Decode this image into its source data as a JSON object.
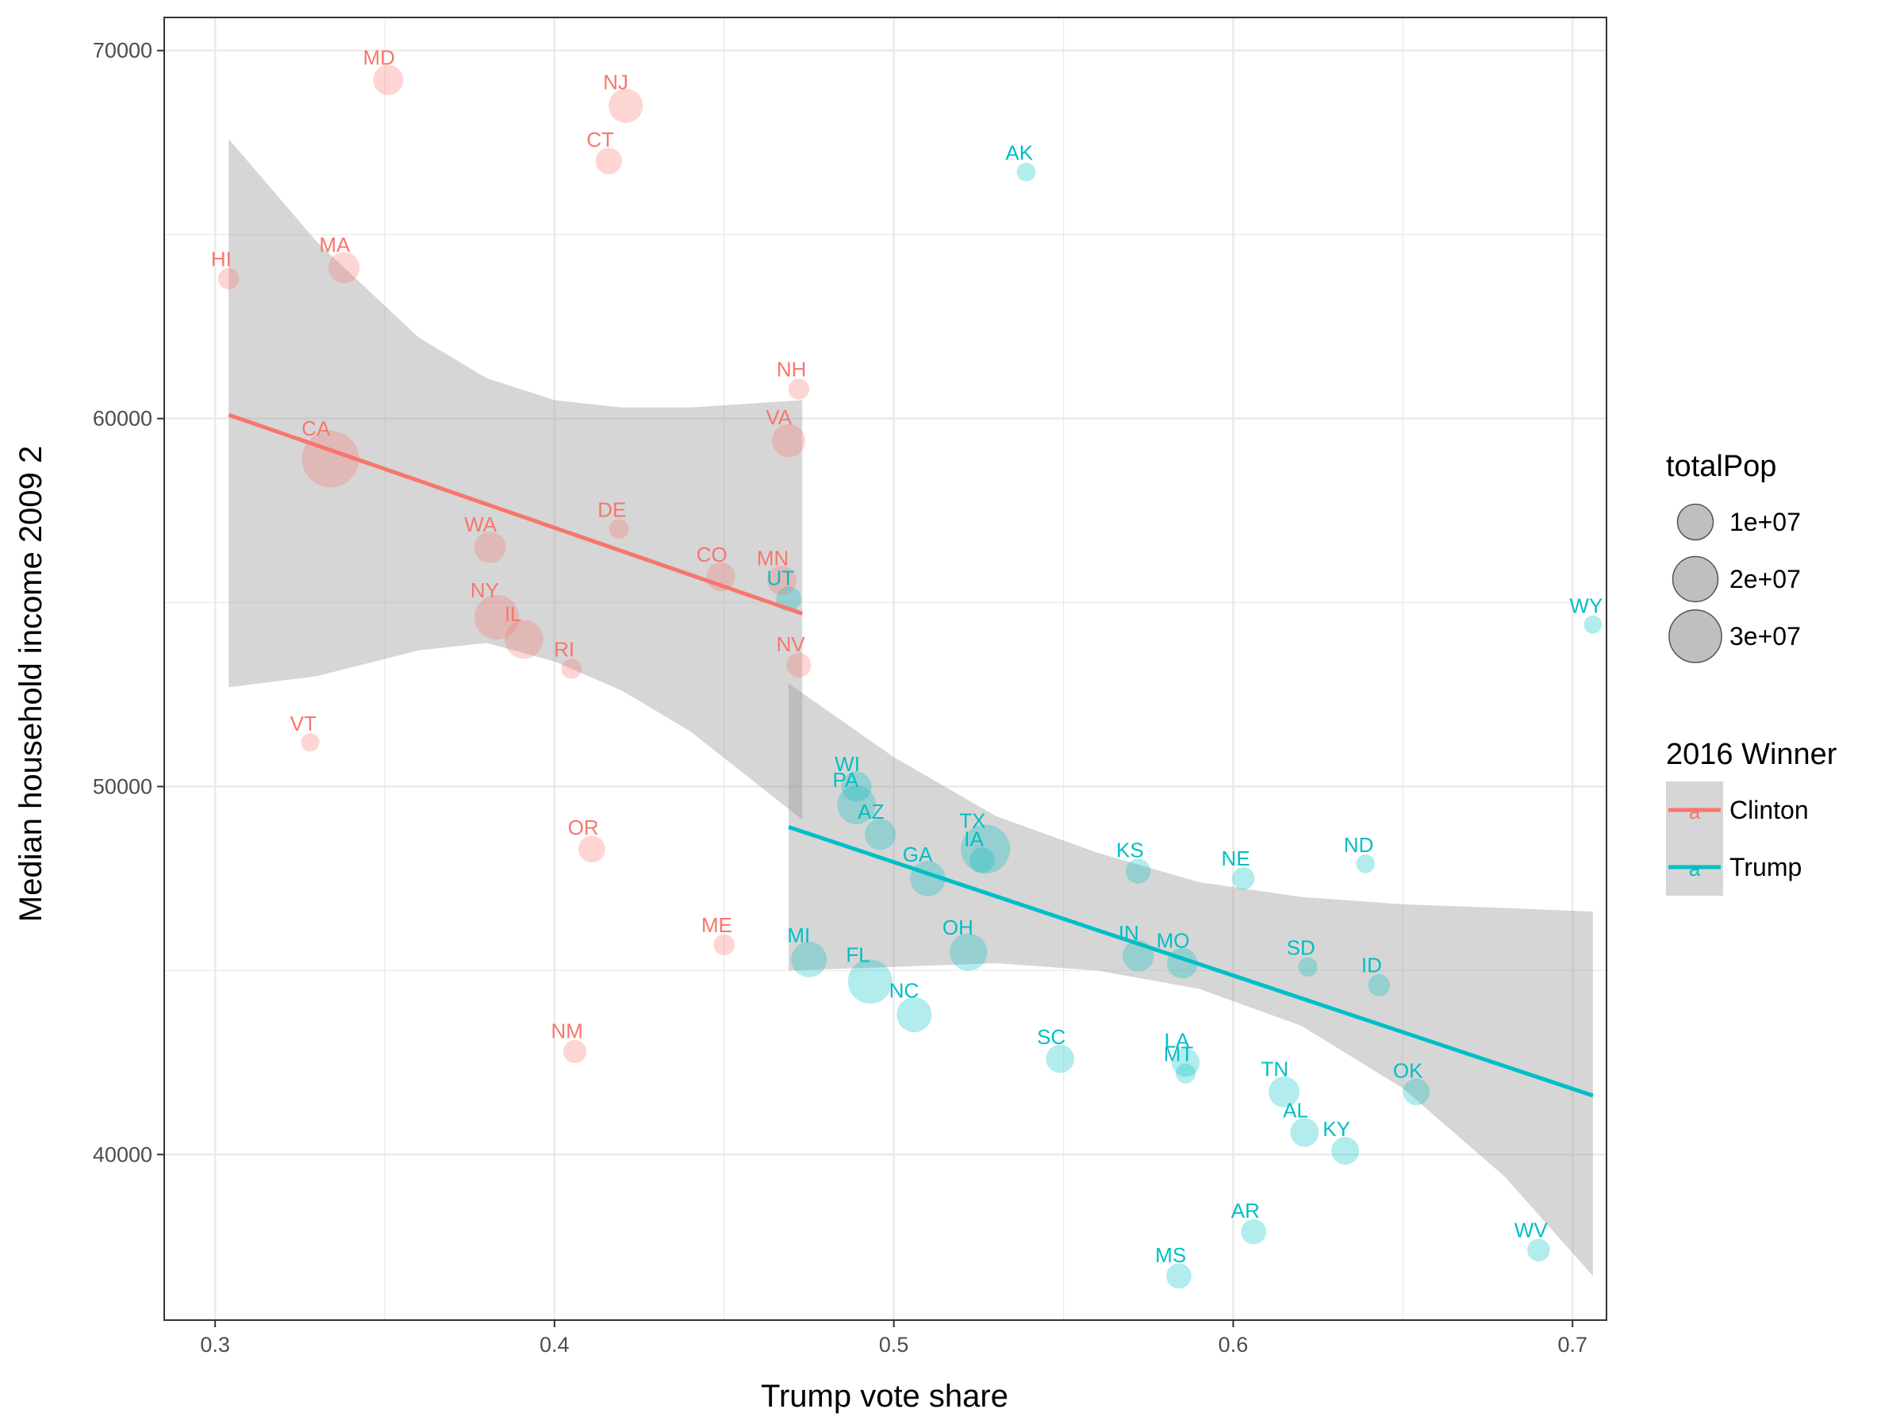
{
  "chart_data": {
    "type": "scatter",
    "title": "",
    "xlabel": "Trump  vote share",
    "ylabel": "Median household income 2009  2",
    "xlim": [
      0.285,
      0.71
    ],
    "ylim": [
      35500,
      70900
    ],
    "x_ticks": [
      0.3,
      0.4,
      0.5,
      0.6,
      0.7
    ],
    "x_tick_labels": [
      "0.3",
      "0.4",
      "0.5",
      "0.6",
      "0.7"
    ],
    "y_ticks": [
      40000,
      50000,
      60000,
      70000
    ],
    "y_tick_labels": [
      "40000",
      "50000",
      "60000",
      "70000"
    ],
    "grid": true,
    "colors": {
      "Clinton": "#F8766D",
      "Trump": "#00BFC4",
      "ribbon": "#999999",
      "panel_border": "#333333",
      "grid": "#ebebeb"
    },
    "size_legend": {
      "title": "totalPop",
      "entries": [
        {
          "label": "1e+07",
          "value": 10000000
        },
        {
          "label": "2e+07",
          "value": 20000000
        },
        {
          "label": "3e+07",
          "value": 30000000
        }
      ]
    },
    "color_legend": {
      "title": "2016 Winner",
      "entries": [
        {
          "label": "Clinton",
          "key_glyph": "a"
        },
        {
          "label": "Trump",
          "key_glyph": "a"
        }
      ]
    },
    "series": [
      {
        "name": "Clinton",
        "points": [
          {
            "label": "MD",
            "x": 0.351,
            "y": 69200,
            "pop": 5800000
          },
          {
            "label": "NJ",
            "x": 0.421,
            "y": 68500,
            "pop": 8800000
          },
          {
            "label": "CT",
            "x": 0.416,
            "y": 67000,
            "pop": 3600000
          },
          {
            "label": "HI",
            "x": 0.304,
            "y": 63800,
            "pop": 1400000
          },
          {
            "label": "MA",
            "x": 0.338,
            "y": 64100,
            "pop": 6500000
          },
          {
            "label": "NH",
            "x": 0.472,
            "y": 60800,
            "pop": 1300000
          },
          {
            "label": "CA",
            "x": 0.334,
            "y": 58900,
            "pop": 37000000
          },
          {
            "label": "VA",
            "x": 0.469,
            "y": 59400,
            "pop": 8000000
          },
          {
            "label": "DE",
            "x": 0.419,
            "y": 57000,
            "pop": 900000
          },
          {
            "label": "WA",
            "x": 0.381,
            "y": 56500,
            "pop": 6700000
          },
          {
            "label": "MN",
            "x": 0.467,
            "y": 55600,
            "pop": 5300000
          },
          {
            "label": "CO",
            "x": 0.449,
            "y": 55700,
            "pop": 5000000
          },
          {
            "label": "NY",
            "x": 0.383,
            "y": 54600,
            "pop": 19400000
          },
          {
            "label": "IL",
            "x": 0.391,
            "y": 54000,
            "pop": 12800000
          },
          {
            "label": "RI",
            "x": 0.405,
            "y": 53200,
            "pop": 1050000
          },
          {
            "label": "NV",
            "x": 0.472,
            "y": 53300,
            "pop": 2700000
          },
          {
            "label": "VT",
            "x": 0.328,
            "y": 51200,
            "pop": 620000
          },
          {
            "label": "OR",
            "x": 0.411,
            "y": 48300,
            "pop": 3800000
          },
          {
            "label": "ME",
            "x": 0.45,
            "y": 45700,
            "pop": 1330000
          },
          {
            "label": "NM",
            "x": 0.406,
            "y": 42800,
            "pop": 2060000
          }
        ],
        "fit": {
          "x": [
            0.304,
            0.473
          ],
          "y": [
            60100,
            54700
          ]
        }
      },
      {
        "name": "Trump",
        "points": [
          {
            "label": "AK",
            "x": 0.539,
            "y": 66700,
            "pop": 710000
          },
          {
            "label": "WY",
            "x": 0.706,
            "y": 54400,
            "pop": 560000
          },
          {
            "label": "UT",
            "x": 0.469,
            "y": 55100,
            "pop": 2800000
          },
          {
            "label": "WI",
            "x": 0.489,
            "y": 50000,
            "pop": 5700000
          },
          {
            "label": "PA",
            "x": 0.489,
            "y": 49500,
            "pop": 12700000
          },
          {
            "label": "TX",
            "x": 0.527,
            "y": 48300,
            "pop": 25000000
          },
          {
            "label": "IA",
            "x": 0.526,
            "y": 48000,
            "pop": 3000000
          },
          {
            "label": "AZ",
            "x": 0.496,
            "y": 48700,
            "pop": 6400000
          },
          {
            "label": "GA",
            "x": 0.51,
            "y": 47500,
            "pop": 9700000
          },
          {
            "label": "KS",
            "x": 0.572,
            "y": 47700,
            "pop": 2850000
          },
          {
            "label": "NE",
            "x": 0.603,
            "y": 47500,
            "pop": 1830000
          },
          {
            "label": "ND",
            "x": 0.639,
            "y": 47900,
            "pop": 670000
          },
          {
            "label": "MI",
            "x": 0.475,
            "y": 45300,
            "pop": 9900000
          },
          {
            "label": "FL",
            "x": 0.493,
            "y": 44700,
            "pop": 18800000
          },
          {
            "label": "OH",
            "x": 0.522,
            "y": 45500,
            "pop": 11500000
          },
          {
            "label": "IN",
            "x": 0.572,
            "y": 45400,
            "pop": 6500000
          },
          {
            "label": "MO",
            "x": 0.585,
            "y": 45200,
            "pop": 6000000
          },
          {
            "label": "SD",
            "x": 0.622,
            "y": 45100,
            "pop": 810000
          },
          {
            "label": "ID",
            "x": 0.643,
            "y": 44600,
            "pop": 1570000
          },
          {
            "label": "NC",
            "x": 0.506,
            "y": 43800,
            "pop": 9500000
          },
          {
            "label": "SC",
            "x": 0.549,
            "y": 42600,
            "pop": 4600000
          },
          {
            "label": "LA",
            "x": 0.586,
            "y": 42500,
            "pop": 4500000
          },
          {
            "label": "MT",
            "x": 0.586,
            "y": 42200,
            "pop": 990000
          },
          {
            "label": "TN",
            "x": 0.615,
            "y": 41700,
            "pop": 6300000
          },
          {
            "label": "OK",
            "x": 0.654,
            "y": 41700,
            "pop": 3750000
          },
          {
            "label": "AL",
            "x": 0.621,
            "y": 40600,
            "pop": 4800000
          },
          {
            "label": "KY",
            "x": 0.633,
            "y": 40100,
            "pop": 4300000
          },
          {
            "label": "AR",
            "x": 0.606,
            "y": 37900,
            "pop": 2900000
          },
          {
            "label": "WV",
            "x": 0.69,
            "y": 37400,
            "pop": 1850000
          },
          {
            "label": "MS",
            "x": 0.584,
            "y": 36700,
            "pop": 2960000
          }
        ],
        "fit": {
          "x": [
            0.469,
            0.706
          ],
          "y": [
            48900,
            41600
          ]
        }
      }
    ],
    "confidence_bands": [
      {
        "series": "Clinton",
        "x": [
          0.304,
          0.33,
          0.36,
          0.38,
          0.4,
          0.42,
          0.44,
          0.473
        ],
        "upper": [
          67600,
          64800,
          62200,
          61100,
          60500,
          60300,
          60300,
          60500
        ],
        "lower": [
          52700,
          53000,
          53700,
          53900,
          53400,
          52600,
          51500,
          49100
        ]
      },
      {
        "series": "Trump",
        "x": [
          0.469,
          0.5,
          0.53,
          0.56,
          0.59,
          0.62,
          0.65,
          0.68,
          0.706
        ],
        "upper": [
          52800,
          50800,
          49200,
          48200,
          47400,
          47000,
          46800,
          46700,
          46600
        ],
        "lower": [
          45000,
          45100,
          45200,
          45000,
          44500,
          43500,
          41800,
          39400,
          36700
        ]
      }
    ]
  }
}
